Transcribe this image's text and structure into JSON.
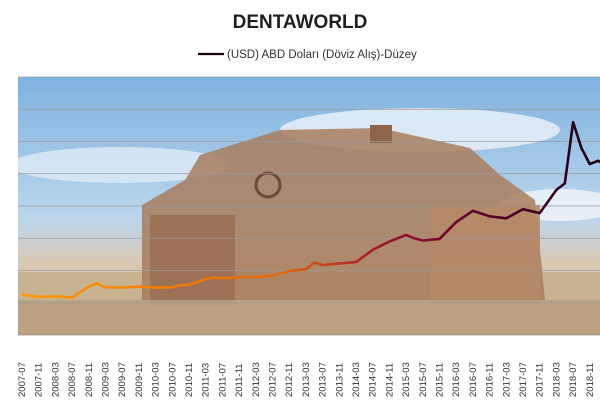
{
  "chart_data": {
    "type": "line",
    "title": "DENTAWORLD",
    "legend": [
      "(USD) ABD Doları  (Döviz Alış)-Düzey"
    ],
    "legend_position": "top",
    "grid": true,
    "ylim": [
      0,
      8
    ],
    "y_ticks_count": 9,
    "categories": [
      "2007-07",
      "2007-11",
      "2008-03",
      "2008-07",
      "2008-11",
      "2009-03",
      "2009-07",
      "2009-11",
      "2010-03",
      "2010-07",
      "2010-11",
      "2011-03",
      "2011-07",
      "2011-11",
      "2012-03",
      "2012-07",
      "2012-11",
      "2013-03",
      "2013-07",
      "2013-11",
      "2014-03",
      "2014-07",
      "2014-11",
      "2015-03",
      "2015-07",
      "2015-11",
      "2016-03",
      "2016-07",
      "2016-11",
      "2017-03",
      "2017-07",
      "2017-11",
      "2018-03",
      "2018-07",
      "2018-11",
      "2019-03"
    ],
    "series": [
      {
        "name": "(USD) ABD Doları  (Döviz Alış)-Düzey",
        "x": [
          0,
          1,
          2,
          3,
          4,
          4.5,
          5,
          6,
          7,
          8,
          9,
          9.5,
          10,
          11,
          11.5,
          12,
          13,
          14,
          15,
          16,
          17,
          17.5,
          18,
          19,
          20,
          21,
          22,
          23,
          23.5,
          24,
          25,
          26,
          27,
          28,
          29,
          30,
          31,
          32,
          32.5,
          33,
          33.5,
          34,
          34.5,
          35,
          35.5
        ],
        "values": [
          1.25,
          1.18,
          1.2,
          1.16,
          1.5,
          1.6,
          1.48,
          1.47,
          1.5,
          1.47,
          1.48,
          1.55,
          1.55,
          1.74,
          1.78,
          1.76,
          1.79,
          1.8,
          1.84,
          1.98,
          2.04,
          2.25,
          2.17,
          2.22,
          2.26,
          2.64,
          2.9,
          3.1,
          3.0,
          2.93,
          2.98,
          3.5,
          3.85,
          3.68,
          3.62,
          3.9,
          3.78,
          4.5,
          4.7,
          6.6,
          5.8,
          5.3,
          5.4,
          5.25,
          5.7
        ],
        "color_start": "#ff9900",
        "color_end": "#1a0010"
      }
    ]
  }
}
